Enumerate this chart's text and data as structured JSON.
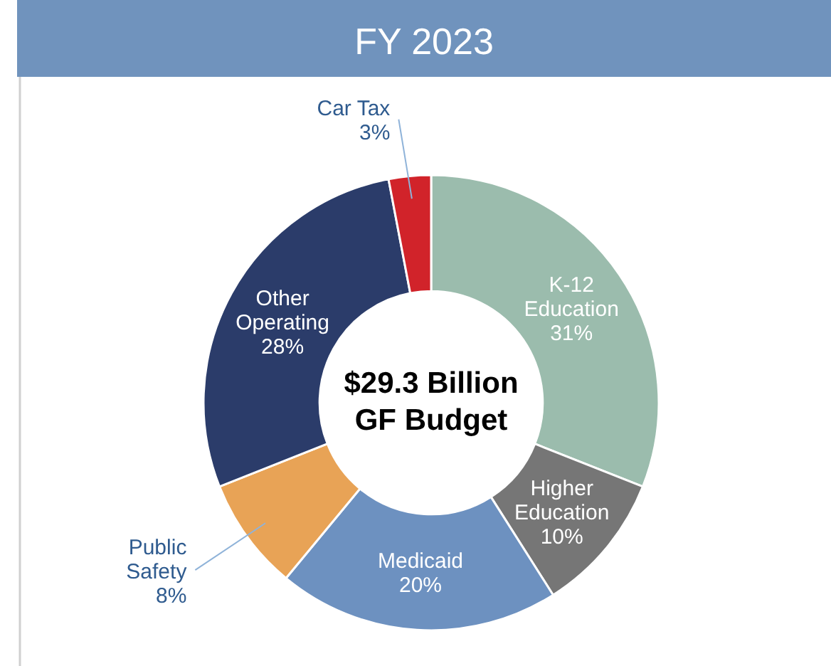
{
  "chart_data": {
    "type": "donut",
    "title": "FY 2023",
    "categories": [
      "K-12 Education",
      "Higher Education",
      "Medicaid",
      "Public Safety",
      "Other Operating",
      "Car Tax"
    ],
    "values": [
      31,
      10,
      20,
      8,
      28,
      3
    ],
    "value_labels": [
      "31%",
      "10%",
      "20%",
      "8%",
      "28%",
      "3%"
    ],
    "colors": [
      "#9bbcad",
      "#767676",
      "#6d91c0",
      "#e8a356",
      "#2b3c6a",
      "#d1232a"
    ],
    "annotations": [
      "$29.3 Billion",
      "GF Budget"
    ]
  }
}
